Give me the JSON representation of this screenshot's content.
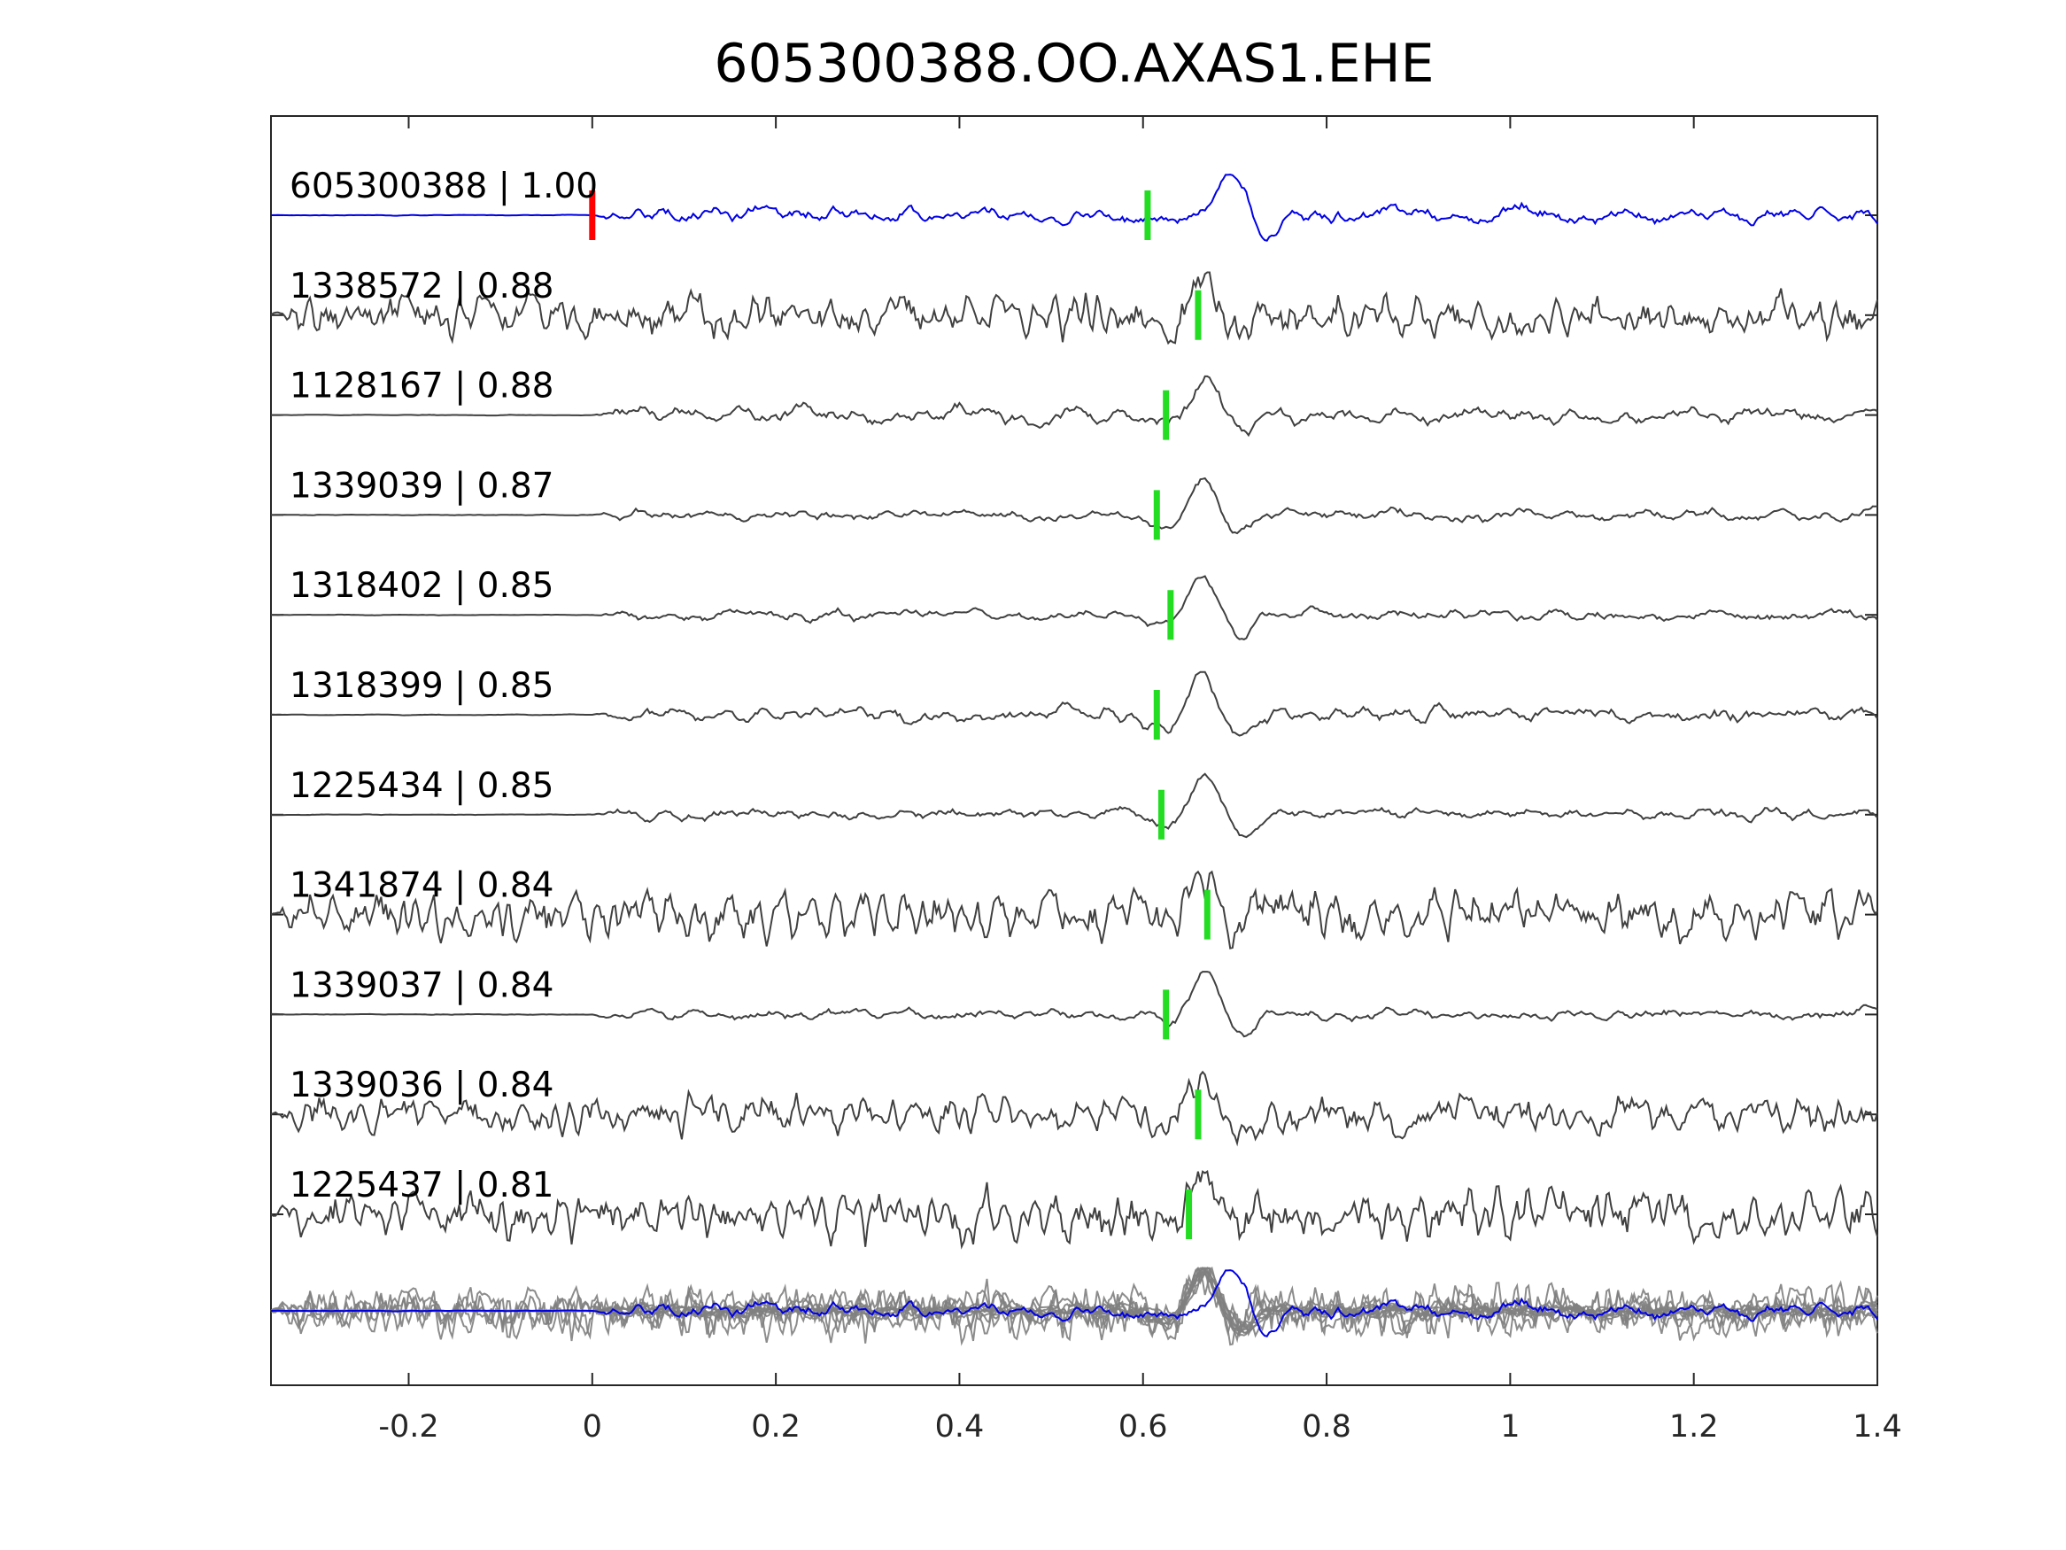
{
  "chart_data": {
    "type": "line",
    "title": "605300388.OO.AXAS1.EHE",
    "xlabel": "",
    "ylabel": "",
    "xlim": [
      -0.35,
      1.4
    ],
    "xticks": [
      -0.2,
      0,
      0.2,
      0.4,
      0.6,
      0.8,
      1,
      1.2,
      1.4
    ],
    "xtick_labels": [
      "-0.2",
      "0",
      "0.2",
      "0.4",
      "0.6",
      "0.8",
      "1",
      "1.2",
      "1.4"
    ],
    "grid": false,
    "legend": "none",
    "colors": {
      "template": "#0000e6",
      "trace": "#404040",
      "stack": "#7f7f7f",
      "origin_pick": "#ff0000",
      "phase_pick": "#22dd22",
      "axes": "#262626"
    },
    "template_origin_time": 0,
    "series": [
      {
        "label": "605300388 | 1.00",
        "pick": 0.605,
        "peak": 0.695,
        "noise_onset": 0.0,
        "noise_level": 0.3,
        "seed": 11
      },
      {
        "label": "1338572 | 0.88",
        "pick": 0.66,
        "peak": 0.665,
        "noise_onset": -0.35,
        "noise_level": 0.45,
        "seed": 23
      },
      {
        "label": "1128167 | 0.88",
        "pick": 0.625,
        "peak": 0.67,
        "noise_onset": 0.0,
        "noise_level": 0.3,
        "seed": 37
      },
      {
        "label": "1339039 | 0.87",
        "pick": 0.615,
        "peak": 0.665,
        "noise_onset": 0.0,
        "noise_level": 0.2,
        "seed": 41
      },
      {
        "label": "1318402 | 0.85",
        "pick": 0.63,
        "peak": 0.665,
        "noise_onset": 0.0,
        "noise_level": 0.2,
        "seed": 53
      },
      {
        "label": "1318399 | 0.85",
        "pick": 0.615,
        "peak": 0.665,
        "noise_onset": 0.0,
        "noise_level": 0.28,
        "seed": 67
      },
      {
        "label": "1225434 | 0.85",
        "pick": 0.62,
        "peak": 0.668,
        "noise_onset": 0.0,
        "noise_level": 0.2,
        "seed": 71
      },
      {
        "label": "1341874 | 0.84",
        "pick": 0.67,
        "peak": 0.663,
        "noise_onset": -0.35,
        "noise_level": 0.55,
        "seed": 83
      },
      {
        "label": "1339037 | 0.84",
        "pick": 0.625,
        "peak": 0.667,
        "noise_onset": 0.0,
        "noise_level": 0.2,
        "seed": 97
      },
      {
        "label": "1339036 | 0.84",
        "pick": 0.66,
        "peak": 0.664,
        "noise_onset": -0.35,
        "noise_level": 0.4,
        "seed": 101
      },
      {
        "label": "1225437 | 0.81",
        "pick": 0.65,
        "peak": 0.665,
        "noise_onset": -0.35,
        "noise_level": 0.55,
        "seed": 113
      }
    ]
  }
}
